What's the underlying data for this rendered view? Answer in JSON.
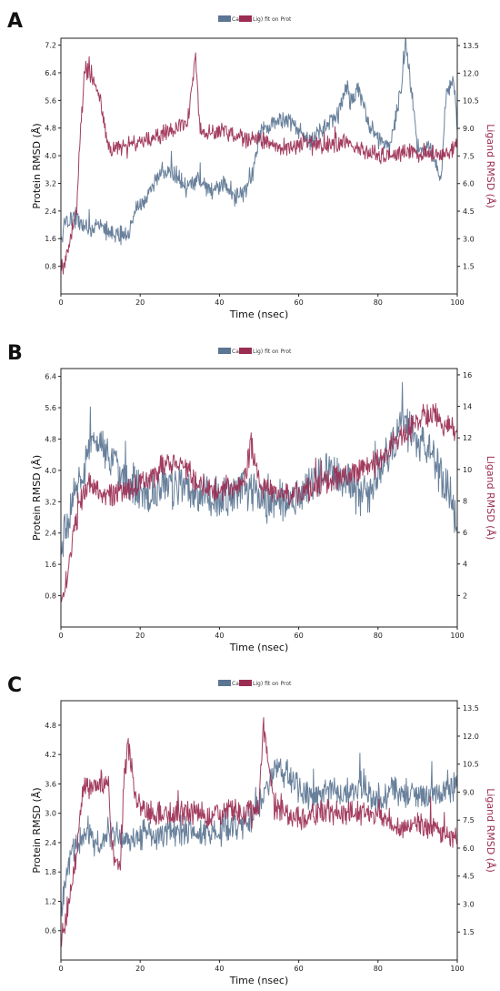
{
  "colors": {
    "protein": "#5b7593",
    "ligand": "#9b2d52",
    "axis": "#222222"
  },
  "chart_data": [
    {
      "type": "line",
      "panel_label": "A",
      "legend": [
        "Ca",
        "Lig) fit on Prot"
      ],
      "xlabel": "Time (nsec)",
      "ylabel_left": "Protein RMSD (Å)",
      "ylabel_right": "Ligand RMSD (Å)",
      "xlim": [
        0,
        100
      ],
      "ylim_left": [
        0,
        7.4
      ],
      "ylim_right": [
        0,
        13.9
      ],
      "x_ticks": [
        0,
        20,
        40,
        60,
        80,
        100
      ],
      "y_ticks_left": [
        "0.8",
        "1.6",
        "2.4",
        "3.2",
        "4.0",
        "4.8",
        "5.6",
        "6.4",
        "7.2"
      ],
      "y_ticks_right": [
        "1.5",
        "3.0",
        "4.5",
        "6.0",
        "7.5",
        "9.0",
        "10.5",
        "12.0",
        "13.5"
      ],
      "series": [
        {
          "name": "Ca",
          "axis": "left",
          "color": "#5b7593",
          "x": [
            0,
            1,
            3,
            5,
            8,
            10,
            12,
            14,
            17,
            19,
            21,
            23,
            25,
            28,
            30,
            32,
            35,
            38,
            41,
            43,
            45,
            48,
            50,
            53,
            56,
            60,
            63,
            66,
            70,
            72,
            73,
            75,
            78,
            80,
            83,
            86,
            87,
            90,
            93,
            96,
            97,
            99,
            100
          ],
          "y": [
            1.4,
            2.1,
            2.2,
            2.1,
            1.9,
            1.9,
            1.8,
            1.7,
            1.7,
            2.5,
            2.6,
            3.0,
            3.6,
            3.5,
            3.4,
            3.0,
            3.3,
            3.0,
            3.2,
            3.0,
            2.8,
            3.2,
            4.6,
            4.9,
            5.1,
            4.7,
            4.4,
            4.8,
            5.2,
            6.1,
            5.5,
            6.0,
            4.8,
            4.5,
            4.2,
            6.1,
            7.3,
            4.3,
            4.2,
            3.4,
            5.6,
            6.2,
            4.8
          ],
          "spread": 0.22
        },
        {
          "name": "Lig) fit on Prot",
          "axis": "right",
          "color": "#9b2d52",
          "x": [
            0,
            1,
            2,
            4,
            5,
            6,
            7,
            9,
            10,
            12,
            14,
            17,
            20,
            24,
            28,
            32,
            34,
            35,
            38,
            41,
            44,
            48,
            52,
            56,
            60,
            64,
            68,
            72,
            76,
            80,
            84,
            88,
            92,
            96,
            100
          ],
          "y": [
            1.0,
            1.6,
            2.5,
            4.8,
            9.0,
            12.3,
            12.0,
            11.3,
            10.5,
            7.8,
            7.9,
            8.1,
            8.3,
            8.6,
            8.9,
            9.4,
            13.0,
            9.0,
            8.7,
            8.9,
            8.6,
            8.3,
            8.3,
            7.9,
            8.1,
            8.2,
            8.0,
            8.3,
            7.8,
            7.6,
            7.5,
            7.8,
            7.7,
            7.5,
            7.9
          ],
          "spread": 0.4
        }
      ]
    },
    {
      "type": "line",
      "panel_label": "B",
      "legend": [
        "Ca",
        "Lig) fit on Prot"
      ],
      "xlabel": "Time (nsec)",
      "ylabel_left": "Protein RMSD (Å)",
      "ylabel_right": "Ligand RMSD (Å)",
      "xlim": [
        0,
        100
      ],
      "ylim_left": [
        0,
        6.6
      ],
      "ylim_right": [
        0,
        16.4
      ],
      "x_ticks": [
        0,
        20,
        40,
        60,
        80,
        100
      ],
      "y_ticks_left": [
        "0.8",
        "1.6",
        "2.4",
        "3.2",
        "4.0",
        "4.8",
        "5.6",
        "6.4"
      ],
      "y_ticks_right": [
        "2",
        "4",
        "6",
        "8",
        "10",
        "12",
        "14",
        "16"
      ],
      "series": [
        {
          "name": "Ca",
          "axis": "left",
          "color": "#5b7593",
          "x": [
            0,
            2,
            4,
            6,
            8,
            10,
            12,
            15,
            18,
            20,
            23,
            26,
            30,
            33,
            36,
            40,
            43,
            46,
            49,
            52,
            55,
            58,
            62,
            65,
            68,
            72,
            75,
            78,
            81,
            84,
            86,
            89,
            92,
            95,
            98,
            100
          ],
          "y": [
            2.0,
            2.8,
            3.6,
            4.2,
            4.6,
            4.8,
            4.3,
            4.0,
            3.6,
            3.4,
            3.5,
            3.6,
            3.6,
            3.5,
            3.4,
            3.3,
            3.3,
            3.6,
            3.4,
            3.2,
            3.4,
            3.1,
            3.6,
            3.8,
            3.9,
            3.8,
            3.4,
            3.3,
            4.1,
            4.6,
            5.3,
            4.9,
            4.5,
            4.1,
            3.4,
            2.6
          ],
          "spread": 0.45
        },
        {
          "name": "Lig) fit on Prot",
          "axis": "right",
          "color": "#9b2d52",
          "x": [
            0,
            1,
            2,
            3,
            5,
            7,
            10,
            14,
            18,
            22,
            26,
            30,
            34,
            38,
            42,
            46,
            48,
            50,
            54,
            58,
            62,
            66,
            70,
            74,
            78,
            82,
            86,
            90,
            94,
            96,
            98,
            100
          ],
          "y": [
            1.8,
            2.4,
            3.8,
            5.5,
            8.0,
            9.0,
            8.6,
            8.4,
            8.8,
            9.4,
            10.2,
            10.6,
            9.2,
            8.6,
            8.8,
            9.2,
            11.5,
            9.0,
            8.6,
            8.3,
            8.7,
            9.0,
            9.6,
            9.8,
            10.2,
            11.2,
            12.0,
            13.2,
            13.6,
            12.6,
            13.0,
            12.0
          ],
          "spread": 0.65
        }
      ]
    },
    {
      "type": "line",
      "panel_label": "C",
      "legend": [
        "Ca",
        "Lig) fit on Prot"
      ],
      "xlabel": "Time (nsec)",
      "ylabel_left": "Protein RMSD (Å)",
      "ylabel_right": "Ligand RMSD (Å)",
      "xlim": [
        0,
        100
      ],
      "ylim_left": [
        0,
        5.3
      ],
      "ylim_right": [
        0,
        13.9
      ],
      "x_ticks": [
        0,
        20,
        40,
        60,
        80,
        100
      ],
      "y_ticks_left": [
        "0.6",
        "1.2",
        "1.8",
        "2.4",
        "3.0",
        "3.6",
        "4.2",
        "4.8"
      ],
      "y_ticks_right": [
        "1.5",
        "3.0",
        "4.5",
        "6.0",
        "7.5",
        "9.0",
        "10.5",
        "12.0",
        "13.5"
      ],
      "series": [
        {
          "name": "Ca",
          "axis": "left",
          "color": "#5b7593",
          "x": [
            0,
            2,
            4,
            6,
            9,
            12,
            15,
            18,
            21,
            24,
            27,
            30,
            33,
            36,
            39,
            42,
            45,
            48,
            51,
            54,
            57,
            60,
            64,
            68,
            72,
            76,
            80,
            84,
            88,
            92,
            96,
            100
          ],
          "y": [
            1.0,
            2.0,
            2.4,
            2.5,
            2.4,
            2.6,
            2.5,
            2.4,
            2.6,
            2.5,
            2.6,
            2.6,
            2.7,
            2.6,
            2.6,
            2.7,
            2.7,
            2.9,
            3.4,
            3.9,
            3.8,
            3.5,
            3.3,
            3.5,
            3.4,
            3.6,
            3.2,
            3.5,
            3.4,
            3.3,
            3.4,
            3.6
          ],
          "spread": 0.25
        },
        {
          "name": "Lig) fit on Prot",
          "axis": "right",
          "color": "#9b2d52",
          "x": [
            0,
            1,
            2,
            3,
            4,
            5,
            6,
            8,
            10,
            12,
            13,
            15,
            16,
            17,
            19,
            22,
            26,
            30,
            34,
            38,
            42,
            46,
            50,
            51,
            54,
            58,
            62,
            66,
            70,
            74,
            78,
            82,
            86,
            90,
            94,
            97,
            100
          ],
          "y": [
            1.0,
            2.0,
            3.0,
            4.5,
            5.5,
            8.0,
            9.2,
            9.4,
            9.5,
            9.4,
            6.0,
            4.6,
            10.0,
            11.5,
            8.5,
            8.0,
            7.8,
            7.8,
            8.0,
            7.6,
            8.0,
            7.8,
            8.2,
            12.5,
            8.0,
            7.8,
            7.6,
            7.9,
            8.0,
            7.8,
            8.1,
            7.5,
            7.0,
            7.3,
            7.0,
            6.7,
            6.3
          ],
          "spread": 0.55
        }
      ]
    }
  ]
}
